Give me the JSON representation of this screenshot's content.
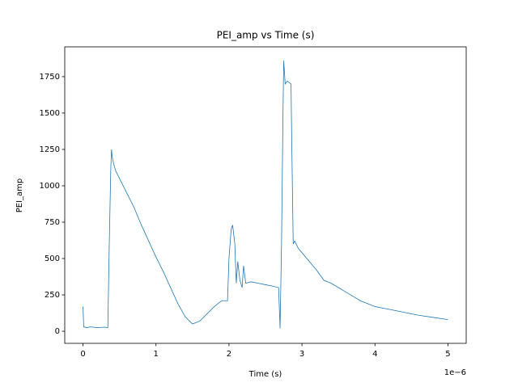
{
  "chart_data": {
    "type": "line",
    "title": "PEI_amp vs Time (s)",
    "x_label": "Time (s)",
    "y_label": "PEI_amp",
    "x_offset_label": "1e−6",
    "color": "#1f77b4",
    "x": [
      0,
      1e-08,
      5e-08,
      1e-07,
      2e-07,
      3e-07,
      3.4e-07,
      3.6e-07,
      3.8e-07,
      3.9e-07,
      4e-07,
      4.2e-07,
      4.5e-07,
      5e-07,
      6e-07,
      7e-07,
      8e-07,
      9e-07,
      1e-06,
      1.1e-06,
      1.2e-06,
      1.3e-06,
      1.4e-06,
      1.5e-06,
      1.6e-06,
      1.7e-06,
      1.8e-06,
      1.9e-06,
      1.98e-06,
      2e-06,
      2.03e-06,
      2.05e-06,
      2.08e-06,
      2.1e-06,
      2.12e-06,
      2.15e-06,
      2.18e-06,
      2.2e-06,
      2.23e-06,
      2.3e-06,
      2.4e-06,
      2.5e-06,
      2.6e-06,
      2.68e-06,
      2.7e-06,
      2.72e-06,
      2.74e-06,
      2.75e-06,
      2.77e-06,
      2.8e-06,
      2.85e-06,
      2.86e-06,
      2.88e-06,
      2.9e-06,
      2.95e-06,
      3e-06,
      3.1e-06,
      3.2e-06,
      3.3e-06,
      3.4e-06,
      3.5e-06,
      3.6e-06,
      3.7e-06,
      3.8e-06,
      3.9e-06,
      4e-06,
      4.2e-06,
      4.4e-06,
      4.6e-06,
      4.8e-06,
      5e-06
    ],
    "values": [
      170,
      30,
      25,
      30,
      25,
      28,
      25,
      600,
      1100,
      1250,
      1200,
      1150,
      1100,
      1050,
      950,
      850,
      730,
      620,
      510,
      410,
      300,
      190,
      100,
      50,
      70,
      120,
      170,
      210,
      210,
      500,
      700,
      730,
      600,
      330,
      480,
      350,
      300,
      450,
      330,
      340,
      330,
      320,
      310,
      300,
      20,
      600,
      1500,
      1860,
      1700,
      1720,
      1700,
      1300,
      600,
      620,
      570,
      540,
      480,
      420,
      350,
      330,
      300,
      270,
      240,
      210,
      190,
      170,
      150,
      130,
      110,
      95,
      80
    ],
    "xlim": [
      -2.5e-07,
      5.25e-06
    ],
    "ylim": [
      -83,
      1955
    ],
    "xticks": [
      0,
      {
        "value": 1e-06,
        "label": "1"
      },
      {
        "value": 2e-06,
        "label": "2"
      },
      {
        "value": 3e-06,
        "label": "3"
      },
      {
        "value": 4e-06,
        "label": "4"
      },
      {
        "value": 5e-06,
        "label": "5"
      }
    ],
    "yticks": [
      0,
      250,
      500,
      750,
      1000,
      1250,
      1500,
      1750
    ]
  }
}
